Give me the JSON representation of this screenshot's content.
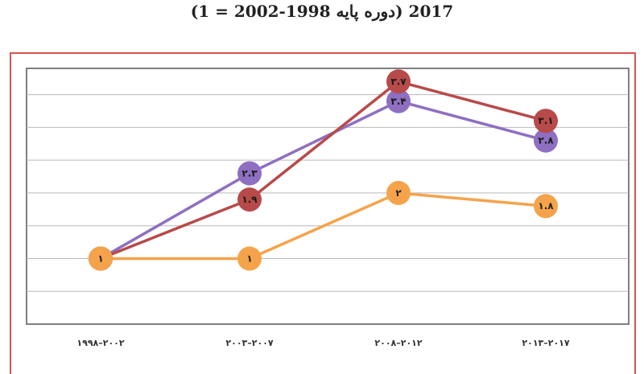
{
  "title": "2017 (دوره پایه 1998-2002 = 1)",
  "chart_data": {
    "type": "line",
    "categories": [
      "۱۹۹۸–۲۰۰۲",
      "۲۰۰۳–۲۰۰۷",
      "۲۰۰۸–۲۰۱۲",
      "۲۰۱۳–۲۰۱۷"
    ],
    "ylim": [
      0,
      3.9
    ],
    "grid": true,
    "legend": "none",
    "series": [
      {
        "color": "#8e6fc1",
        "values": [
          1,
          2.3,
          3.4,
          2.8
        ],
        "labels": [
          "۱",
          "۲.۳",
          "۳.۴",
          "۲.۸"
        ]
      },
      {
        "color": "#b84a4a",
        "values": [
          1,
          1.9,
          3.7,
          3.1
        ],
        "labels": [
          "۱",
          "۱.۹",
          "۳.۷",
          "۳.۱"
        ]
      },
      {
        "color": "#f5a34a",
        "values": [
          1,
          1,
          2,
          1.8
        ],
        "labels": [
          "۱",
          "۱",
          "۲",
          "۱.۸"
        ]
      }
    ]
  }
}
